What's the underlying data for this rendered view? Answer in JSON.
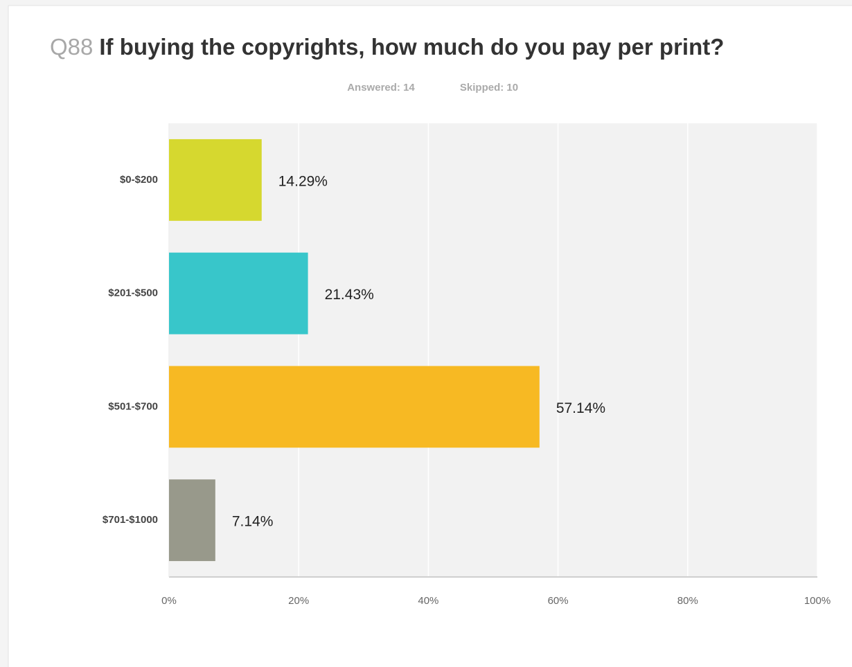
{
  "chart_data": {
    "type": "hbar",
    "question_number": "Q88",
    "title": "If buying the copyrights, how much do you pay per print?",
    "answered": "Answered: 14",
    "skipped": "Skipped: 10",
    "categories": [
      "$0-$200",
      "$201-$500",
      "$501-$700",
      "$701-$1000"
    ],
    "values": [
      14.29,
      21.43,
      57.14,
      7.14
    ],
    "value_labels": [
      "14.29%",
      "21.43%",
      "57.14%",
      "7.14%"
    ],
    "colors": [
      "#d6d82f",
      "#38c6ca",
      "#f7b923",
      "#98998b"
    ],
    "xlim": [
      0,
      100
    ],
    "xticks": [
      {
        "value": 0,
        "label": "0%"
      },
      {
        "value": 20,
        "label": "20%"
      },
      {
        "value": 40,
        "label": "40%"
      },
      {
        "value": 60,
        "label": "60%"
      },
      {
        "value": 80,
        "label": "80%"
      },
      {
        "value": 100,
        "label": "100%"
      }
    ],
    "grid": true
  }
}
